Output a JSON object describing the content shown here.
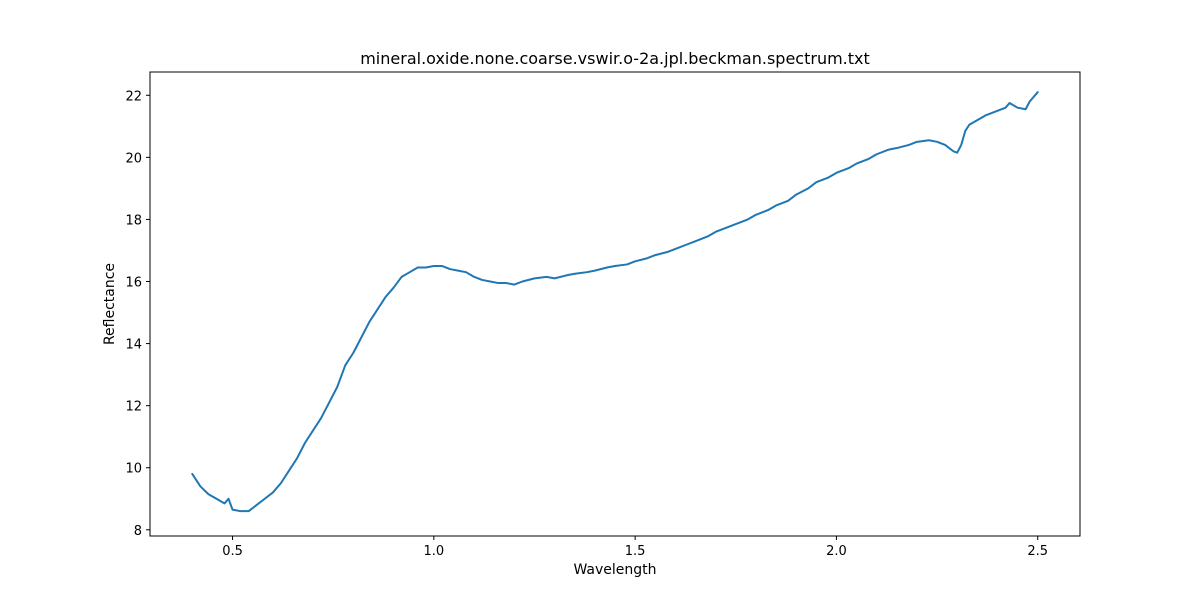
{
  "chart_data": {
    "type": "line",
    "title": "mineral.oxide.none.coarse.vswir.o-2a.jpl.beckman.spectrum.txt",
    "xlabel": "Wavelength",
    "ylabel": "Reflectance",
    "xlim": [
      0.295,
      2.605
    ],
    "ylim": [
      7.8,
      22.75
    ],
    "xticks": [
      0.5,
      1.0,
      1.5,
      2.0,
      2.5
    ],
    "xtick_labels": [
      "0.5",
      "1.0",
      "1.5",
      "2.0",
      "2.5"
    ],
    "yticks": [
      8,
      10,
      12,
      14,
      16,
      18,
      20,
      22
    ],
    "ytick_labels": [
      "8",
      "10",
      "12",
      "14",
      "16",
      "18",
      "20",
      "22"
    ],
    "grid": false,
    "series": [
      {
        "color": "#1f77b4",
        "x": [
          0.4,
          0.42,
          0.44,
          0.46,
          0.48,
          0.49,
          0.5,
          0.52,
          0.54,
          0.56,
          0.58,
          0.6,
          0.62,
          0.64,
          0.66,
          0.68,
          0.7,
          0.72,
          0.74,
          0.76,
          0.78,
          0.8,
          0.82,
          0.84,
          0.86,
          0.88,
          0.9,
          0.92,
          0.94,
          0.96,
          0.98,
          1.0,
          1.02,
          1.04,
          1.06,
          1.08,
          1.1,
          1.12,
          1.14,
          1.16,
          1.18,
          1.2,
          1.22,
          1.25,
          1.28,
          1.3,
          1.33,
          1.35,
          1.38,
          1.4,
          1.43,
          1.45,
          1.48,
          1.5,
          1.53,
          1.55,
          1.58,
          1.6,
          1.63,
          1.65,
          1.68,
          1.7,
          1.73,
          1.75,
          1.78,
          1.8,
          1.83,
          1.85,
          1.88,
          1.9,
          1.93,
          1.95,
          1.98,
          2.0,
          2.03,
          2.05,
          2.08,
          2.1,
          2.13,
          2.15,
          2.18,
          2.2,
          2.23,
          2.25,
          2.27,
          2.29,
          2.3,
          2.31,
          2.32,
          2.33,
          2.35,
          2.37,
          2.4,
          2.42,
          2.43,
          2.45,
          2.47,
          2.48,
          2.5
        ],
        "y": [
          9.8,
          9.4,
          9.15,
          9.0,
          8.85,
          9.0,
          8.65,
          8.6,
          8.6,
          8.8,
          9.0,
          9.2,
          9.5,
          9.9,
          10.3,
          10.8,
          11.2,
          11.6,
          12.1,
          12.6,
          13.3,
          13.7,
          14.2,
          14.7,
          15.1,
          15.5,
          15.8,
          16.15,
          16.3,
          16.45,
          16.45,
          16.5,
          16.5,
          16.4,
          16.35,
          16.3,
          16.15,
          16.05,
          16.0,
          15.95,
          15.95,
          15.9,
          16.0,
          16.1,
          16.15,
          16.1,
          16.2,
          16.25,
          16.3,
          16.35,
          16.45,
          16.5,
          16.55,
          16.65,
          16.75,
          16.85,
          16.95,
          17.05,
          17.2,
          17.3,
          17.45,
          17.6,
          17.75,
          17.85,
          18.0,
          18.15,
          18.3,
          18.45,
          18.6,
          18.8,
          19.0,
          19.2,
          19.35,
          19.5,
          19.65,
          19.8,
          19.95,
          20.1,
          20.25,
          20.3,
          20.4,
          20.5,
          20.55,
          20.5,
          20.4,
          20.2,
          20.15,
          20.4,
          20.85,
          21.05,
          21.2,
          21.35,
          21.5,
          21.6,
          21.75,
          21.6,
          21.55,
          21.8,
          22.1
        ]
      }
    ]
  }
}
